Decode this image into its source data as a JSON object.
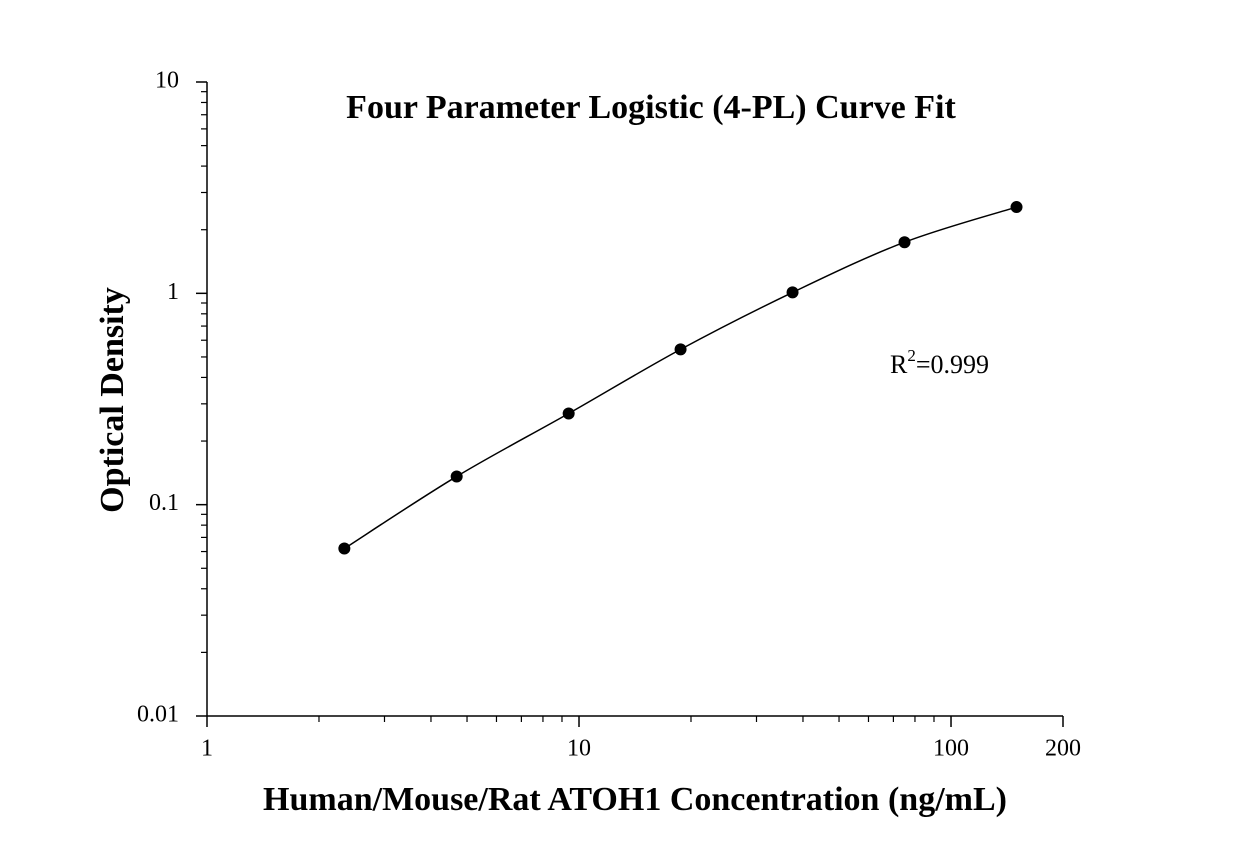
{
  "chart_data": {
    "type": "scatter",
    "title": "Four Parameter Logistic (4-PL) Curve Fit",
    "x_label": "Human/Mouse/Rat ATOH1 Concentration (ng/mL)",
    "y_label": "Optical Density",
    "x": [
      2.34,
      4.69,
      9.38,
      18.75,
      37.5,
      75,
      150
    ],
    "values": [
      0.062,
      0.136,
      0.27,
      0.543,
      1.01,
      1.745,
      2.56
    ],
    "color": "#000000",
    "fit_line": true,
    "xlim": [
      1,
      200
    ],
    "ylim": [
      0.01,
      10
    ],
    "x_log": true,
    "y_log": true,
    "xticks": [
      1,
      10,
      100,
      200
    ],
    "yticks": [
      0.01,
      0.1,
      1,
      10
    ],
    "xminor_ticks": [
      2,
      3,
      4,
      5,
      6,
      7,
      8,
      9,
      20,
      30,
      40,
      50,
      60,
      70,
      80,
      90
    ],
    "yminor_ticks": [
      0.02,
      0.03,
      0.04,
      0.05,
      0.06,
      0.07,
      0.08,
      0.09,
      0.2,
      0.3,
      0.4,
      0.5,
      0.6,
      0.7,
      0.8,
      0.9,
      2,
      3,
      4,
      5,
      6,
      7,
      8,
      9
    ],
    "annotation": {
      "text": "R",
      "superscript": "2",
      "suffix": "=0.999"
    }
  }
}
